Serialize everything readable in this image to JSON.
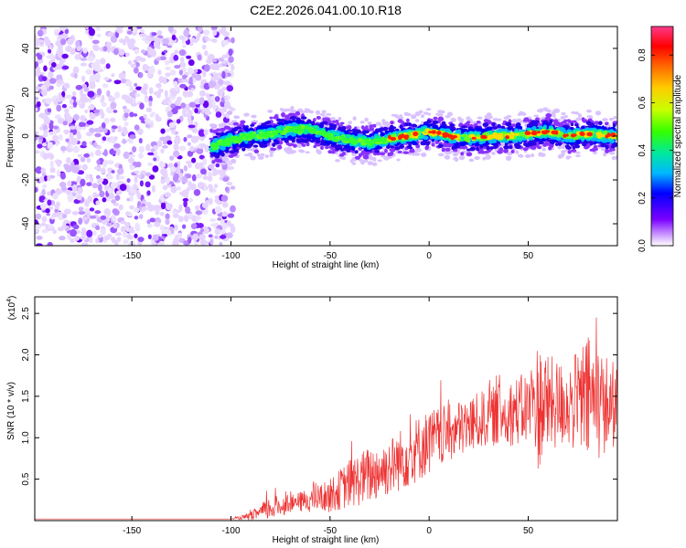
{
  "chart_data": [
    {
      "type": "heatmap",
      "title": "C2E2.2026.041.00.10.R18",
      "xlabel": "Height of straight line (km)",
      "ylabel": "Frequency (Hz)",
      "xlim": [
        -199,
        95
      ],
      "ylim": [
        -50,
        50
      ],
      "x_ticks": [
        -150,
        -100,
        -50,
        0,
        50
      ],
      "y_ticks": [
        -40,
        -20,
        0,
        20,
        40
      ],
      "noise_region_km": [
        -199,
        -99
      ],
      "signal_onset_km": -110,
      "ridge": {
        "x": [
          -110,
          -100,
          -90,
          -80,
          -70,
          -60,
          -50,
          -40,
          -30,
          -20,
          -10,
          0,
          10,
          20,
          30,
          40,
          50,
          60,
          70,
          80,
          95
        ],
        "freq_hz": [
          -5,
          -2,
          0,
          1,
          3,
          3,
          0,
          -2,
          -3,
          -1,
          0,
          2,
          0,
          -1,
          0,
          0,
          1,
          2,
          0,
          1,
          0
        ]
      },
      "colorbar": {
        "label": "Normalized spectral amplitude",
        "range": [
          0,
          0.92
        ],
        "ticks": [
          "0.0",
          "0.2",
          "0.4",
          "0.6",
          "0.8"
        ],
        "stops": [
          "#ffffff",
          "#cc99ff",
          "#7a00ff",
          "#0000ff",
          "#00b7ff",
          "#00e8a0",
          "#33ff00",
          "#c8ff00",
          "#ffcc00",
          "#ff6600",
          "#ff0000",
          "#ff3a8c"
        ]
      }
    },
    {
      "type": "line",
      "title": "",
      "xlabel": "Height of straight line (km)",
      "ylabel": "SNR (10 * v/v)",
      "y_scale_label": "(x10",
      "y_scale_exp": "4",
      "y_scale_suffix": ")",
      "xlim": [
        -199,
        95
      ],
      "ylim": [
        0,
        2.7
      ],
      "x_ticks": [
        -150,
        -100,
        -50,
        0,
        50
      ],
      "y_ticks": [
        "0.5",
        "1.0",
        "1.5",
        "2.0",
        "2.5"
      ],
      "line_color": "#ee3333",
      "envelope": {
        "x": [
          -199,
          -100,
          -90,
          -80,
          -70,
          -60,
          -50,
          -40,
          -30,
          -20,
          -10,
          0,
          10,
          20,
          30,
          40,
          50,
          55,
          60,
          70,
          80,
          90,
          95
        ],
        "center": [
          0.02,
          0.02,
          0.05,
          0.15,
          0.2,
          0.25,
          0.3,
          0.45,
          0.55,
          0.65,
          0.8,
          0.95,
          1.05,
          1.15,
          1.25,
          1.3,
          1.35,
          1.4,
          1.4,
          1.4,
          1.45,
          1.4,
          1.4
        ],
        "amplitude": [
          0.0,
          0.0,
          0.05,
          0.15,
          0.1,
          0.15,
          0.2,
          0.3,
          0.35,
          0.35,
          0.4,
          0.4,
          0.35,
          0.35,
          0.35,
          0.4,
          0.45,
          0.8,
          0.6,
          0.5,
          0.8,
          0.6,
          0.5
        ]
      }
    }
  ]
}
